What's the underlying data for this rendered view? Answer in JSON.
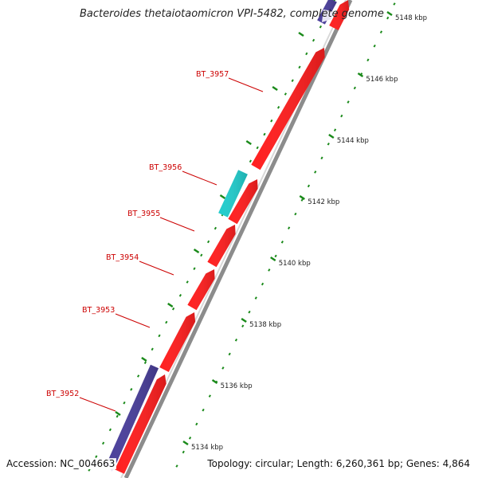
{
  "title": "Bacteroides thetaiotaomicron VPI-5482, complete genome",
  "footer": {
    "accession": "Accession: NC_004663",
    "summary": "Topology: circular; Length: 6,260,361 bp; Genes: 4,864"
  },
  "colors": {
    "forward_gene": "#ff1f1f",
    "reverse_gene": "#4a3f9b",
    "rna_gene": "#22cccc",
    "tick": "#1a8a1a",
    "label": "#cc0000",
    "backbone": "#8c8c8c",
    "leader_line": "#cc0000"
  },
  "ruler": {
    "unit": "kbp",
    "labels": [
      {
        "kbp": 5134,
        "text": "5134 kbp"
      },
      {
        "kbp": 5136,
        "text": "5136 kbp"
      },
      {
        "kbp": 5138,
        "text": "5138 kbp"
      },
      {
        "kbp": 5140,
        "text": "5140 kbp"
      },
      {
        "kbp": 5142,
        "text": "5142 kbp"
      },
      {
        "kbp": 5144,
        "text": "5144 kbp"
      },
      {
        "kbp": 5146,
        "text": "5146 kbp"
      },
      {
        "kbp": 5148,
        "text": "5148 kbp"
      }
    ]
  },
  "genes": [
    {
      "name": "BT_3952",
      "label": "BT_3952",
      "strand": "forward",
      "type": "cds",
      "labeled": true
    },
    {
      "name": "BT_3952-rev",
      "label": "",
      "strand": "reverse",
      "type": "cds",
      "labeled": false
    },
    {
      "name": "BT_3953",
      "label": "BT_3953",
      "strand": "forward",
      "type": "cds",
      "labeled": true
    },
    {
      "name": "BT_3954",
      "label": "BT_3954",
      "strand": "forward",
      "type": "cds",
      "labeled": true
    },
    {
      "name": "BT_3955",
      "label": "BT_3955",
      "strand": "forward",
      "type": "cds",
      "labeled": true
    },
    {
      "name": "BT_3956",
      "label": "BT_3956",
      "strand": "forward",
      "type": "cds",
      "labeled": true
    },
    {
      "name": "BT_3956-rna",
      "label": "",
      "strand": "reverse",
      "type": "rna",
      "labeled": false
    },
    {
      "name": "BT_3957",
      "label": "BT_3957",
      "strand": "forward",
      "type": "cds",
      "labeled": true
    },
    {
      "name": "top-forward",
      "label": "",
      "strand": "forward",
      "type": "cds",
      "labeled": false
    },
    {
      "name": "top-reverse",
      "label": "",
      "strand": "reverse",
      "type": "cds",
      "labeled": false
    }
  ]
}
